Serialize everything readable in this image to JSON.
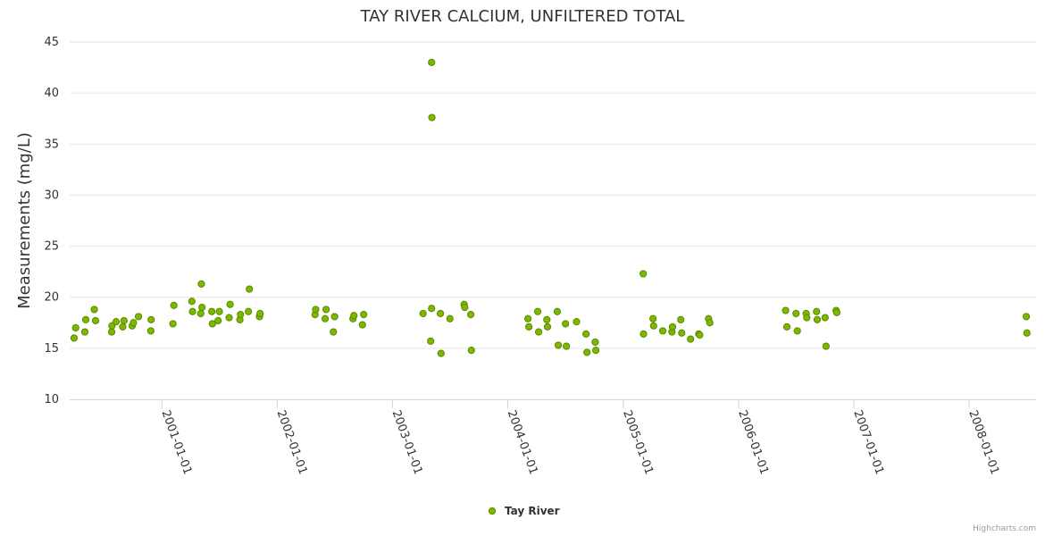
{
  "chart_data": {
    "type": "scatter",
    "title": "TAY RIVER CALCIUM, UNFILTERED TOTAL",
    "ylabel": "Measurements (mg/L)",
    "xlabel": "",
    "ylim": [
      10,
      45
    ],
    "xlim": [
      "2000-03-15",
      "2008-07-31"
    ],
    "yticks": [
      "10",
      "15",
      "20",
      "25",
      "30",
      "35",
      "40",
      "45"
    ],
    "xticks": [
      "2001-01-01",
      "2002-01-01",
      "2003-01-01",
      "2004-01-01",
      "2005-01-01",
      "2006-01-01",
      "2007-01-01",
      "2008-01-01"
    ],
    "grid": true,
    "legend": "bottom-center",
    "series": [
      {
        "name": "Tay River",
        "color": "#7cb800",
        "points": [
          [
            "2000-03-29",
            16.0
          ],
          [
            "2000-04-03",
            17.0
          ],
          [
            "2000-05-02",
            16.6
          ],
          [
            "2000-05-05",
            17.8
          ],
          [
            "2000-06-01",
            18.8
          ],
          [
            "2000-06-05",
            17.7
          ],
          [
            "2000-07-26",
            16.6
          ],
          [
            "2000-07-27",
            17.2
          ],
          [
            "2000-08-09",
            17.6
          ],
          [
            "2000-08-30",
            17.1
          ],
          [
            "2000-09-03",
            17.7
          ],
          [
            "2000-09-29",
            17.2
          ],
          [
            "2000-10-03",
            17.5
          ],
          [
            "2000-10-19",
            18.1
          ],
          [
            "2000-11-27",
            16.7
          ],
          [
            "2000-11-28",
            17.8
          ],
          [
            "2001-02-05",
            17.4
          ],
          [
            "2001-02-08",
            19.2
          ],
          [
            "2001-04-06",
            19.6
          ],
          [
            "2001-04-08",
            18.6
          ],
          [
            "2001-05-04",
            18.4
          ],
          [
            "2001-05-08",
            19.0
          ],
          [
            "2001-05-06",
            21.3
          ],
          [
            "2001-06-08",
            18.6
          ],
          [
            "2001-06-10",
            17.4
          ],
          [
            "2001-06-28",
            17.7
          ],
          [
            "2001-07-02",
            18.6
          ],
          [
            "2001-08-02",
            18.0
          ],
          [
            "2001-08-05",
            19.3
          ],
          [
            "2001-09-05",
            17.8
          ],
          [
            "2001-09-07",
            18.3
          ],
          [
            "2001-10-02",
            18.6
          ],
          [
            "2001-10-05",
            20.8
          ],
          [
            "2001-11-06",
            18.1
          ],
          [
            "2001-11-08",
            18.4
          ],
          [
            "2002-05-01",
            18.3
          ],
          [
            "2002-05-03",
            18.8
          ],
          [
            "2002-06-02",
            17.9
          ],
          [
            "2002-06-05",
            18.8
          ],
          [
            "2002-06-28",
            16.6
          ],
          [
            "2002-07-02",
            18.1
          ],
          [
            "2002-08-29",
            17.9
          ],
          [
            "2002-09-01",
            18.2
          ],
          [
            "2002-09-28",
            17.3
          ],
          [
            "2002-10-02",
            18.3
          ],
          [
            "2003-04-08",
            18.4
          ],
          [
            "2003-05-02",
            15.7
          ],
          [
            "2003-05-05",
            18.9
          ],
          [
            "2003-05-05",
            43.0
          ],
          [
            "2003-05-06",
            37.6
          ],
          [
            "2003-06-02",
            18.4
          ],
          [
            "2003-06-04",
            14.5
          ],
          [
            "2003-07-02",
            17.9
          ],
          [
            "2003-08-16",
            19.3
          ],
          [
            "2003-08-18",
            19.0
          ],
          [
            "2003-09-06",
            18.3
          ],
          [
            "2003-09-08",
            14.8
          ],
          [
            "2004-03-05",
            17.9
          ],
          [
            "2004-03-08",
            17.1
          ],
          [
            "2004-04-05",
            18.6
          ],
          [
            "2004-04-08",
            16.6
          ],
          [
            "2004-05-04",
            17.8
          ],
          [
            "2004-05-06",
            17.1
          ],
          [
            "2004-06-06",
            18.6
          ],
          [
            "2004-06-09",
            15.3
          ],
          [
            "2004-07-02",
            17.4
          ],
          [
            "2004-07-05",
            15.2
          ],
          [
            "2004-08-06",
            17.6
          ],
          [
            "2004-09-05",
            16.4
          ],
          [
            "2004-09-08",
            14.6
          ],
          [
            "2004-10-04",
            15.6
          ],
          [
            "2004-10-06",
            14.8
          ],
          [
            "2005-03-05",
            22.3
          ],
          [
            "2005-03-06",
            16.4
          ],
          [
            "2005-04-05",
            17.9
          ],
          [
            "2005-04-07",
            17.2
          ],
          [
            "2005-05-06",
            16.7
          ],
          [
            "2005-06-04",
            16.6
          ],
          [
            "2005-06-06",
            17.1
          ],
          [
            "2005-07-02",
            17.8
          ],
          [
            "2005-07-05",
            16.5
          ],
          [
            "2005-08-02",
            15.9
          ],
          [
            "2005-08-28",
            16.4
          ],
          [
            "2005-08-31",
            16.3
          ],
          [
            "2005-09-28",
            17.9
          ],
          [
            "2005-10-02",
            17.5
          ],
          [
            "2006-05-30",
            18.7
          ],
          [
            "2006-06-03",
            17.1
          ],
          [
            "2006-07-02",
            18.4
          ],
          [
            "2006-07-06",
            16.7
          ],
          [
            "2006-08-03",
            18.4
          ],
          [
            "2006-08-05",
            18.0
          ],
          [
            "2006-09-05",
            18.6
          ],
          [
            "2006-09-07",
            17.8
          ],
          [
            "2006-10-02",
            18.0
          ],
          [
            "2006-10-05",
            15.2
          ],
          [
            "2006-11-06",
            18.7
          ],
          [
            "2006-11-08",
            18.5
          ],
          [
            "2008-06-30",
            18.1
          ],
          [
            "2008-07-02",
            16.5
          ]
        ]
      }
    ]
  },
  "credits": "Highcharts.com"
}
